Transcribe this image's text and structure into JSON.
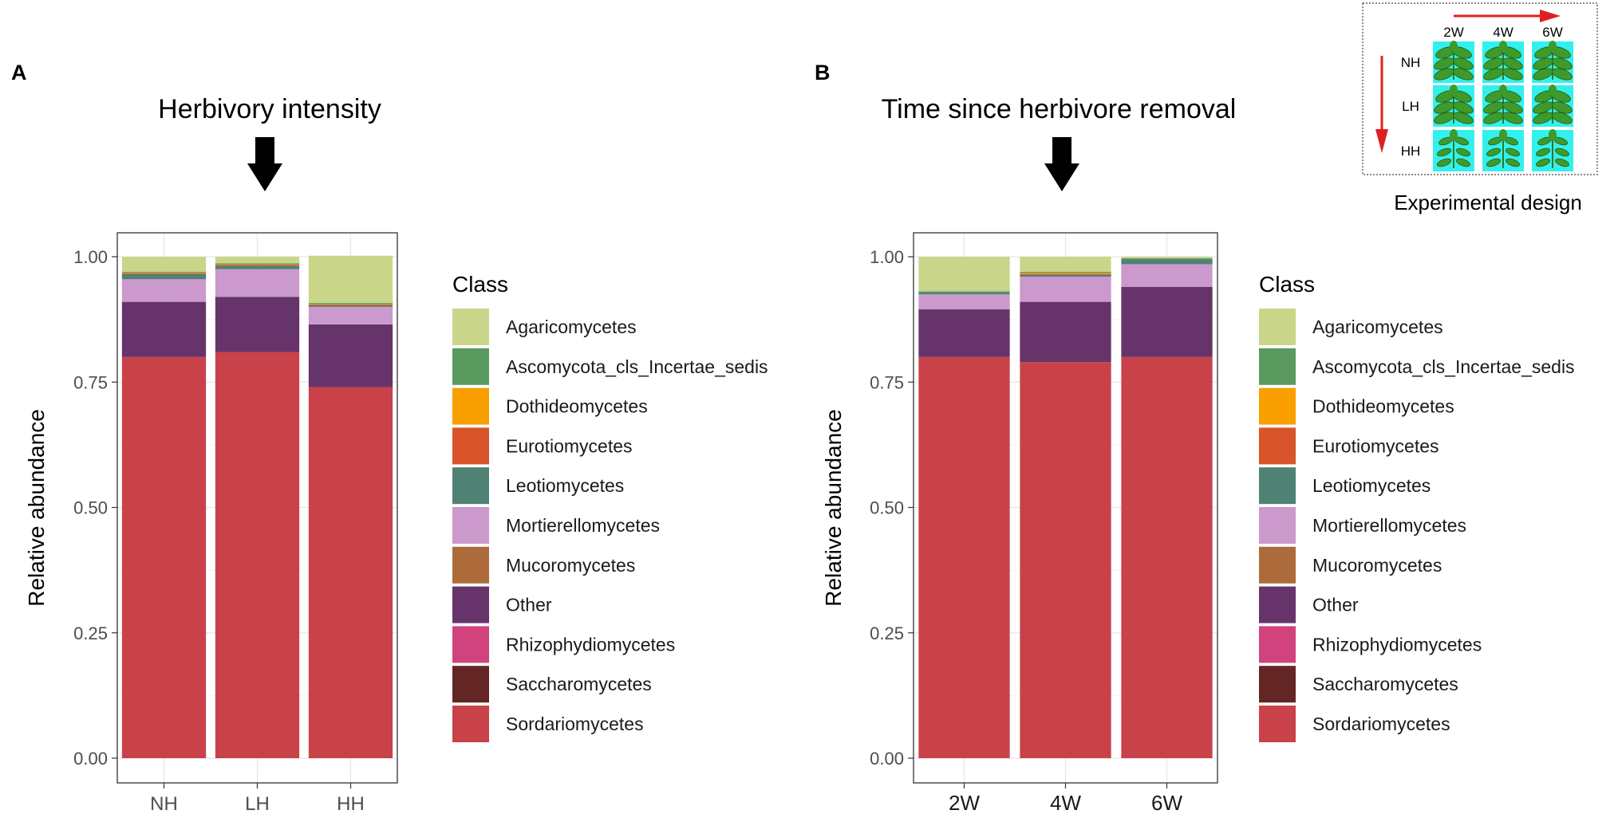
{
  "chart_data": [
    {
      "type": "bar",
      "stacked": true,
      "panel_label": "A",
      "title": "Herbivory intensity",
      "xlabel": "",
      "ylabel": "Relative abundance",
      "ylim": [
        0,
        1
      ],
      "yticks": [
        "0.00",
        "0.25",
        "0.50",
        "0.75",
        "1.00"
      ],
      "categories": [
        "NH",
        "LH",
        "HH"
      ],
      "legend_title": "Class",
      "series": [
        {
          "name": "Sordariomycetes",
          "values": [
            0.8,
            0.81,
            0.74
          ]
        },
        {
          "name": "Saccharomycetes",
          "values": [
            0.0,
            0.0,
            0.0
          ]
        },
        {
          "name": "Rhizophydiomycetes",
          "values": [
            0.0,
            0.0,
            0.0
          ]
        },
        {
          "name": "Other",
          "values": [
            0.11,
            0.11,
            0.125
          ]
        },
        {
          "name": "Mucoromycetes",
          "values": [
            0.0,
            0.0,
            0.0
          ]
        },
        {
          "name": "Mortierellomycetes",
          "values": [
            0.045,
            0.055,
            0.035
          ]
        },
        {
          "name": "Leotiomycetes",
          "values": [
            0.01,
            0.007,
            0.003
          ]
        },
        {
          "name": "Eurotiomycetes",
          "values": [
            0.002,
            0.002,
            0.002
          ]
        },
        {
          "name": "Dothideomycetes",
          "values": [
            0.001,
            0.001,
            0.001
          ]
        },
        {
          "name": "Ascomycota_cls_Incertae_sedis",
          "values": [
            0.002,
            0.002,
            0.002
          ]
        },
        {
          "name": "Agaricomycetes",
          "values": [
            0.03,
            0.013,
            0.094
          ]
        }
      ],
      "grid": true,
      "legend_position": "right"
    },
    {
      "type": "bar",
      "stacked": true,
      "panel_label": "B",
      "title": "Time since herbivore removal",
      "xlabel": "",
      "ylabel": "Relative abundance",
      "ylim": [
        0,
        1
      ],
      "yticks": [
        "0.00",
        "0.25",
        "0.50",
        "0.75",
        "1.00"
      ],
      "categories": [
        "2W",
        "4W",
        "6W"
      ],
      "legend_title": "Class",
      "series": [
        {
          "name": "Sordariomycetes",
          "values": [
            0.8,
            0.79,
            0.8
          ]
        },
        {
          "name": "Saccharomycetes",
          "values": [
            0.0,
            0.0,
            0.0
          ]
        },
        {
          "name": "Rhizophydiomycetes",
          "values": [
            0.0,
            0.0,
            0.0
          ]
        },
        {
          "name": "Other",
          "values": [
            0.095,
            0.12,
            0.14
          ]
        },
        {
          "name": "Mucoromycetes",
          "values": [
            0.0,
            0.0,
            0.0
          ]
        },
        {
          "name": "Mortierellomycetes",
          "values": [
            0.03,
            0.05,
            0.045
          ]
        },
        {
          "name": "Leotiomycetes",
          "values": [
            0.004,
            0.004,
            0.01
          ]
        },
        {
          "name": "Eurotiomycetes",
          "values": [
            0.0,
            0.002,
            0.0
          ]
        },
        {
          "name": "Dothideomycetes",
          "values": [
            0.0,
            0.002,
            0.0
          ]
        },
        {
          "name": "Ascomycota_cls_Incertae_sedis",
          "values": [
            0.002,
            0.002,
            0.002
          ]
        },
        {
          "name": "Agaricomycetes",
          "values": [
            0.069,
            0.03,
            0.003
          ]
        }
      ],
      "grid": true,
      "legend_position": "right"
    }
  ],
  "legend": {
    "title": "Class",
    "items": [
      {
        "name": "Agaricomycetes",
        "color": "#c9d68a"
      },
      {
        "name": "Ascomycota_cls_Incertae_sedis",
        "color": "#5a9a5e"
      },
      {
        "name": "Dothideomycetes",
        "color": "#f9a000"
      },
      {
        "name": "Eurotiomycetes",
        "color": "#d9542a"
      },
      {
        "name": "Leotiomycetes",
        "color": "#4f8275"
      },
      {
        "name": "Mortierellomycetes",
        "color": "#cc99cc"
      },
      {
        "name": "Mucoromycetes",
        "color": "#ad6b3c"
      },
      {
        "name": "Other",
        "color": "#66346b"
      },
      {
        "name": "Rhizophydiomycetes",
        "color": "#d0437d"
      },
      {
        "name": "Saccharomycetes",
        "color": "#642625"
      },
      {
        "name": "Sordariomycetes",
        "color": "#c9424a"
      }
    ]
  },
  "inset": {
    "caption": "Experimental design",
    "columns": [
      "2W",
      "4W",
      "6W"
    ],
    "rows": [
      "NH",
      "LH",
      "HH"
    ],
    "tile_color": "#33f0ee",
    "arrow_color": "#e02020"
  }
}
